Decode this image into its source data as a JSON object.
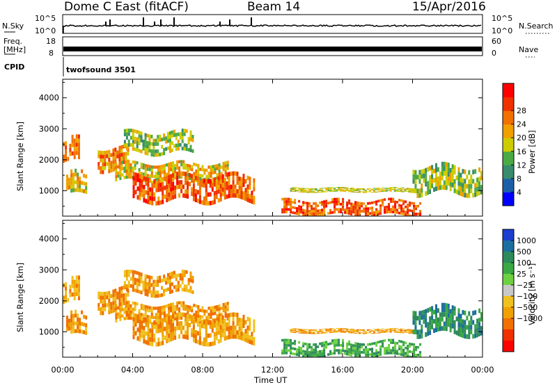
{
  "header": {
    "station": "Dome C East (fitACF)",
    "beam": "Beam 14",
    "date": "15/Apr/2016"
  },
  "top_panels": {
    "nsky_label": "N.Sky",
    "nsky_ticks": [
      "10^5",
      "10^0"
    ],
    "nsearch_label": "N.Search",
    "nsearch_ticks": [
      "10^5",
      "10^0"
    ],
    "freq_label_1": "Freq.",
    "freq_label_2": "[MHz]",
    "freq_ticks": [
      "18",
      "8"
    ],
    "nave_label": "Nave",
    "nave_ticks": [
      "60",
      "0"
    ],
    "cpid_label": "CPID",
    "cpid_value": "twofsound 3501"
  },
  "chart_data": [
    {
      "type": "heatmap",
      "name": "power",
      "ylabel": "Slant Range [km]",
      "xlabel": "Time UT",
      "ylim": [
        180,
        4600
      ],
      "xlim": [
        0,
        24
      ],
      "yticks": [
        1000,
        2000,
        3000,
        4000
      ],
      "xticks": [
        "00:00",
        "04:00",
        "08:00",
        "12:00",
        "16:00",
        "20:00",
        "00:00"
      ],
      "colorbar": {
        "label": "Power [dB]",
        "ticks": [
          "4",
          "8",
          "12",
          "16",
          "20",
          "24",
          "28"
        ],
        "colors": [
          "#0000ff",
          "#1c5fa8",
          "#3a8a6e",
          "#4caa44",
          "#cccc00",
          "#f0a000",
          "#f07000",
          "#f03000",
          "#ff0000"
        ]
      }
    },
    {
      "type": "heatmap",
      "name": "velocity",
      "ylabel": "Slant Range [km]",
      "xlabel": "Time UT",
      "ylim": [
        180,
        4600
      ],
      "xlim": [
        0,
        24
      ],
      "yticks": [
        1000,
        2000,
        3000,
        4000
      ],
      "xticks": [
        "00:00",
        "04:00",
        "08:00",
        "12:00",
        "16:00",
        "20:00",
        "00:00"
      ],
      "colorbar": {
        "label": "Velocity [m s⁻¹]",
        "ticks": [
          "1000",
          "500",
          "100",
          "25",
          "−25",
          "−100",
          "−500",
          "−1000"
        ],
        "colors": [
          "#1c3fd0",
          "#1c6ea0",
          "#2e8a5a",
          "#3aa844",
          "#6cd040",
          "#c8c8c8",
          "#f0c020",
          "#f0a000",
          "#f07000",
          "#f03000",
          "#ff0000"
        ]
      }
    }
  ]
}
